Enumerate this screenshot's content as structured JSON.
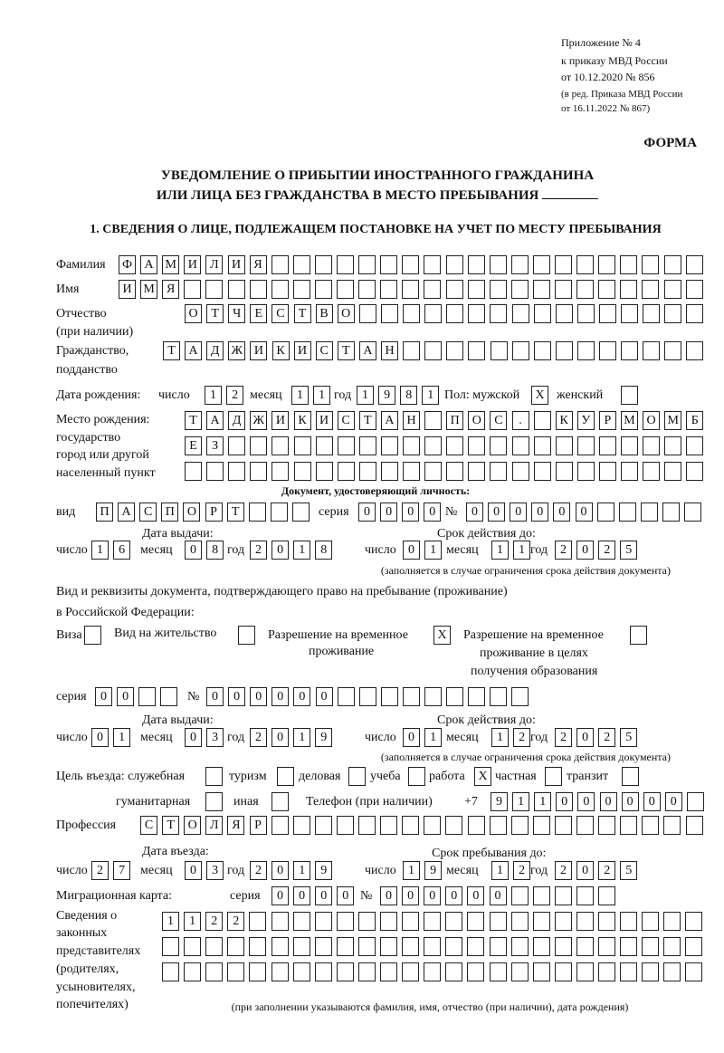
{
  "header": {
    "appendix": [
      "Приложение № 4",
      "к приказу МВД России",
      "от 10.12.2020 № 856"
    ],
    "revision": [
      "(в ред. Приказа МВД России",
      "от 16.11.2022 № 867)"
    ],
    "form_label": "ФОРМА",
    "title_line1": "УВЕДОМЛЕНИЕ О ПРИБЫТИИ ИНОСТРАННОГО ГРАЖДАНИНА",
    "title_line2": "ИЛИ ЛИЦА БЕЗ ГРАЖДАНСТВА В МЕСТО ПРЕБЫВАНИЯ",
    "section1": "1. СВЕДЕНИЯ О ЛИЦЕ, ПОДЛЕЖАЩЕМ ПОСТАНОВКЕ НА УЧЕТ ПО МЕСТУ ПРЕБЫВАНИЯ"
  },
  "labels": {
    "surname": "Фамилия",
    "name": "Имя",
    "patronymic": "Отчество",
    "patronymic2": "(при наличии)",
    "citizenship": "Гражданство,",
    "citizenship2": "подданство",
    "birth_date": "Дата рождения:",
    "day": "число",
    "month": "месяц",
    "year": "год",
    "sex": "Пол: мужской",
    "female": "женский",
    "birthplace": [
      "Место рождения:",
      "государство",
      "город или другой",
      "населенный пункт"
    ],
    "id_doc": "Документ, удостоверяющий личность:",
    "kind": "вид",
    "series": "серия",
    "number": "№",
    "issue_date": "Дата выдачи:",
    "valid_until": "Срок действия до:",
    "validity_note": "(заполняется в случае ограничения срока действия документа)",
    "stay_doc1": "Вид и реквизиты документа, подтверждающего право на пребывание (проживание)",
    "stay_doc2": "в Российской Федерации:",
    "visa": "Виза",
    "residence": "Вид на жительство",
    "trp": [
      "Разрешение на временное",
      "проживание"
    ],
    "trp_edu": [
      "Разрешение на временное",
      "проживание в целях",
      "получения образования"
    ],
    "purpose": "Цель въезда: служебная",
    "tourism": "туризм",
    "business": "деловая",
    "study": "учеба",
    "work": "работа",
    "private": "частная",
    "transit": "транзит",
    "humanitarian": "гуманитарная",
    "other": "иная",
    "phone": "Телефон (при наличии)",
    "phone_prefix": "+7",
    "profession": "Профессия",
    "entry_date": "Дата въезда:",
    "stay_until": "Срок пребывания до:",
    "migration_card": "Миграционная карта:",
    "reps": [
      "Сведения о",
      "законных",
      "представителях",
      "(родителях,",
      "усыновителях,",
      "попечителях)"
    ],
    "reps_note": "(при заполнении указываются фамилия, имя, отчество (при наличии), дата рождения)"
  },
  "values": {
    "surname": "ФАМИЛИЯ",
    "name": "ИМЯ",
    "patronymic": "ОТЧЕСТВО",
    "citizenship": "ТАДЖИКИСТАН",
    "birth_day": "12",
    "birth_month": "11",
    "birth_year": "1981",
    "sex_male": "X",
    "sex_female": "",
    "birthplace1": "ТАДЖИКИСТАН ПОС. КУРМОМБ",
    "birthplace2": "ЕЗ",
    "birthplace3": "",
    "doc_kind": "ПАСПОРТ",
    "doc_series": "0000",
    "doc_number": "000000",
    "doc_issue_day": "16",
    "doc_issue_month": "08",
    "doc_issue_year": "2018",
    "doc_valid_day": "01",
    "doc_valid_month": "11",
    "doc_valid_year": "2025",
    "visa": "",
    "residence": "",
    "trp": "X",
    "trp_edu": "",
    "stay_series": "00",
    "stay_number": "000000",
    "stay_issue_day": "01",
    "stay_issue_month": "03",
    "stay_issue_year": "2019",
    "stay_valid_day": "01",
    "stay_valid_month": "12",
    "stay_valid_year": "2025",
    "purpose_official": "",
    "purpose_tourism": "",
    "purpose_business": "",
    "purpose_study": "",
    "purpose_work": "X",
    "purpose_private": "",
    "purpose_transit": "",
    "purpose_humanitarian": "",
    "purpose_other": "",
    "phone": "911000000",
    "profession": "СТОЛЯР",
    "entry_day": "27",
    "entry_month": "03",
    "entry_year": "2019",
    "stay_until_day": "19",
    "stay_until_month": "12",
    "stay_until_year": "2025",
    "mc_series": "0000",
    "mc_number": "000000",
    "reps1": "1122",
    "reps2": "",
    "reps3": ""
  }
}
